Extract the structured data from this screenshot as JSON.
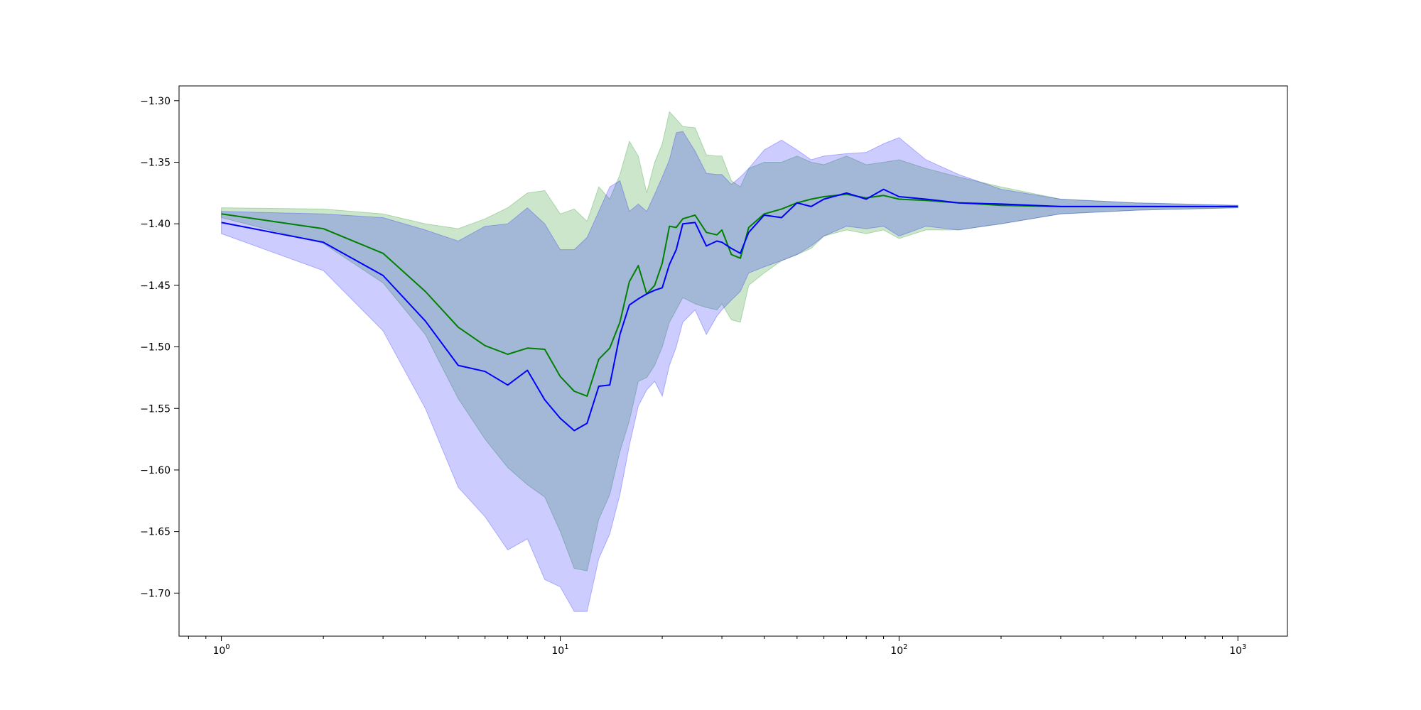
{
  "chart_data": {
    "type": "line",
    "title": "",
    "xlabel": "",
    "ylabel": "",
    "xscale": "log",
    "xlim": [
      0.75,
      1400
    ],
    "ylim": [
      -1.735,
      -1.288
    ],
    "grid": false,
    "legend": "none",
    "x_ticks": [
      {
        "value": 1,
        "base": "10",
        "exp": "0"
      },
      {
        "value": 10,
        "base": "10",
        "exp": "1"
      },
      {
        "value": 100,
        "base": "10",
        "exp": "2"
      },
      {
        "value": 1000,
        "base": "10",
        "exp": "3"
      }
    ],
    "y_ticks": [
      {
        "value": -1.3,
        "label": "−1.30"
      },
      {
        "value": -1.35,
        "label": "−1.35"
      },
      {
        "value": -1.4,
        "label": "−1.40"
      },
      {
        "value": -1.45,
        "label": "−1.45"
      },
      {
        "value": -1.5,
        "label": "−1.50"
      },
      {
        "value": -1.55,
        "label": "−1.55"
      },
      {
        "value": -1.6,
        "label": "−1.60"
      },
      {
        "value": -1.65,
        "label": "−1.65"
      },
      {
        "value": -1.7,
        "label": "−1.70"
      }
    ],
    "series": [
      {
        "color": "#008000",
        "band_color": "#008000",
        "band_opacity": 0.2,
        "x": [
          1,
          2,
          3,
          4,
          5,
          6,
          7,
          8,
          9,
          10,
          11,
          12,
          13,
          14,
          15,
          16,
          17,
          18,
          19,
          20,
          21,
          22,
          23,
          25,
          27,
          29,
          30,
          32,
          34,
          36,
          40,
          45,
          50,
          55,
          60,
          70,
          80,
          90,
          100,
          120,
          150,
          200,
          300,
          500,
          1000
        ],
        "values": [
          -1.392,
          -1.404,
          -1.424,
          -1.455,
          -1.484,
          -1.499,
          -1.506,
          -1.501,
          -1.502,
          -1.524,
          -1.536,
          -1.54,
          -1.51,
          -1.501,
          -1.48,
          -1.447,
          -1.434,
          -1.457,
          -1.45,
          -1.432,
          -1.402,
          -1.403,
          -1.396,
          -1.393,
          -1.407,
          -1.409,
          -1.405,
          -1.425,
          -1.428,
          -1.403,
          -1.392,
          -1.388,
          -1.383,
          -1.38,
          -1.378,
          -1.376,
          -1.379,
          -1.377,
          -1.38,
          -1.381,
          -1.383,
          -1.385,
          -1.386,
          -1.386,
          -1.386
        ],
        "upper": [
          -1.387,
          -1.388,
          -1.392,
          -1.4,
          -1.404,
          -1.396,
          -1.387,
          -1.375,
          -1.373,
          -1.392,
          -1.388,
          -1.398,
          -1.37,
          -1.38,
          -1.36,
          -1.333,
          -1.345,
          -1.375,
          -1.35,
          -1.335,
          -1.309,
          -1.315,
          -1.321,
          -1.322,
          -1.344,
          -1.345,
          -1.345,
          -1.365,
          -1.37,
          -1.355,
          -1.35,
          -1.35,
          -1.345,
          -1.35,
          -1.352,
          -1.345,
          -1.352,
          -1.35,
          -1.348,
          -1.355,
          -1.362,
          -1.37,
          -1.38,
          -1.383,
          -1.385
        ],
        "lower": [
          -1.395,
          -1.416,
          -1.448,
          -1.49,
          -1.542,
          -1.575,
          -1.598,
          -1.612,
          -1.622,
          -1.65,
          -1.68,
          -1.682,
          -1.64,
          -1.62,
          -1.585,
          -1.56,
          -1.528,
          -1.525,
          -1.515,
          -1.5,
          -1.48,
          -1.47,
          -1.46,
          -1.465,
          -1.468,
          -1.47,
          -1.465,
          -1.478,
          -1.48,
          -1.45,
          -1.44,
          -1.43,
          -1.425,
          -1.42,
          -1.41,
          -1.405,
          -1.408,
          -1.405,
          -1.412,
          -1.405,
          -1.405,
          -1.4,
          -1.392,
          -1.389,
          -1.387
        ]
      },
      {
        "color": "#0000ff",
        "band_color": "#0000ff",
        "band_opacity": 0.2,
        "x": [
          1,
          2,
          3,
          4,
          5,
          6,
          7,
          8,
          9,
          10,
          11,
          12,
          13,
          14,
          15,
          16,
          17,
          18,
          19,
          20,
          21,
          22,
          23,
          25,
          27,
          29,
          30,
          32,
          34,
          36,
          40,
          45,
          50,
          55,
          60,
          70,
          80,
          90,
          100,
          120,
          150,
          200,
          300,
          500,
          1000
        ],
        "values": [
          -1.399,
          -1.415,
          -1.442,
          -1.479,
          -1.515,
          -1.52,
          -1.531,
          -1.519,
          -1.543,
          -1.558,
          -1.568,
          -1.562,
          -1.532,
          -1.531,
          -1.49,
          -1.466,
          -1.461,
          -1.457,
          -1.454,
          -1.452,
          -1.433,
          -1.421,
          -1.4,
          -1.399,
          -1.418,
          -1.414,
          -1.415,
          -1.42,
          -1.424,
          -1.407,
          -1.393,
          -1.395,
          -1.383,
          -1.386,
          -1.38,
          -1.375,
          -1.38,
          -1.372,
          -1.378,
          -1.38,
          -1.383,
          -1.384,
          -1.386,
          -1.386,
          -1.386
        ],
        "upper": [
          -1.39,
          -1.392,
          -1.395,
          -1.405,
          -1.414,
          -1.402,
          -1.4,
          -1.387,
          -1.4,
          -1.421,
          -1.421,
          -1.411,
          -1.39,
          -1.37,
          -1.365,
          -1.39,
          -1.384,
          -1.39,
          -1.376,
          -1.362,
          -1.348,
          -1.326,
          -1.325,
          -1.341,
          -1.359,
          -1.36,
          -1.36,
          -1.368,
          -1.362,
          -1.355,
          -1.34,
          -1.332,
          -1.34,
          -1.348,
          -1.345,
          -1.343,
          -1.342,
          -1.335,
          -1.33,
          -1.348,
          -1.36,
          -1.372,
          -1.38,
          -1.383,
          -1.385
        ],
        "lower": [
          -1.408,
          -1.438,
          -1.487,
          -1.55,
          -1.614,
          -1.638,
          -1.665,
          -1.656,
          -1.689,
          -1.695,
          -1.715,
          -1.715,
          -1.672,
          -1.652,
          -1.62,
          -1.58,
          -1.548,
          -1.535,
          -1.528,
          -1.54,
          -1.515,
          -1.5,
          -1.48,
          -1.47,
          -1.49,
          -1.475,
          -1.47,
          -1.462,
          -1.455,
          -1.44,
          -1.435,
          -1.43,
          -1.425,
          -1.418,
          -1.41,
          -1.402,
          -1.404,
          -1.402,
          -1.41,
          -1.402,
          -1.405,
          -1.4,
          -1.392,
          -1.389,
          -1.387
        ]
      }
    ]
  }
}
